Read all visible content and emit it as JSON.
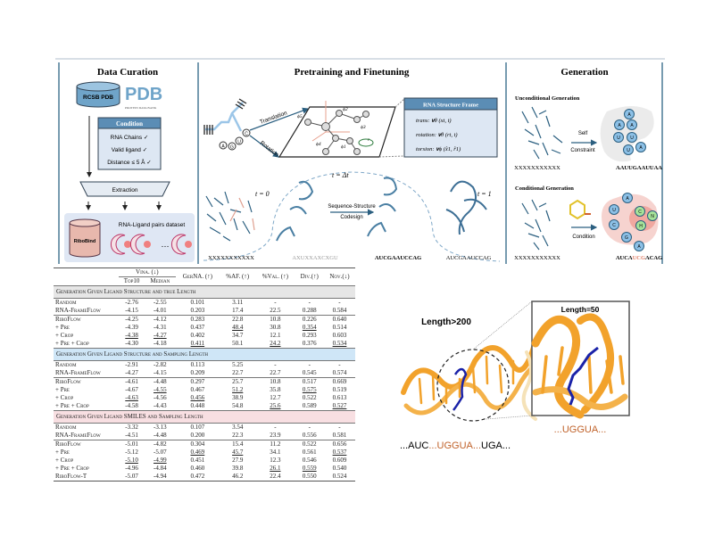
{
  "panels": {
    "curation": {
      "title": "Data Curation",
      "db_label": "RCSB PDB",
      "pdb_logo": "PDB",
      "pdb_logo_sub": "PROTEIN DATA BANK",
      "condition_title": "Condition",
      "conditions": [
        "RNA Chains ✓",
        "Valid ligand ✓",
        "Distance ≤ 5 Å ✓"
      ],
      "extraction": "Extraction",
      "dataset_label": "RNA-Ligand pairs dataset",
      "dataset_name": "RiboBind",
      "ellipsis": "…"
    },
    "pretraining": {
      "title": "Pretraining and Finetuning",
      "translation": "Translation",
      "rotation": "Rotation",
      "bases": [
        "A",
        "G",
        "U",
        "C"
      ],
      "angles": [
        "ϕ5",
        "ϕ2",
        "ϕ3",
        "ϕ1",
        "ϕ4",
        "r"
      ],
      "frame_title": "RNA Structure Frame",
      "frame_lines": [
        "trans: 𝐯θ (xt, t)",
        "rotation: 𝐯θ (rt, t)",
        "torsion: 𝐯ϕ (x̂1, r̂1)"
      ],
      "t0": "t = 0",
      "tdt": "t = Δt",
      "t1": "t = 1",
      "codesign": [
        "Sequence-Structure",
        "Codesign"
      ],
      "sequences": [
        "XXXXXXXXXXX",
        "AXUXXAXCXGU",
        "AUCGAAUCCAG",
        "AUCGAAUCCAG"
      ]
    },
    "generation": {
      "title": "Generation",
      "unconditional": "Unconditional Generation",
      "self_constraint": [
        "Self",
        "Constraint"
      ],
      "uncond_input": "XXXXXXXXXXX",
      "uncond_output": "AAUUGAAUUAA",
      "uncond_nodes": [
        "A",
        "A",
        "A",
        "U",
        "U",
        "U",
        "A"
      ],
      "conditional": "Conditional Generation",
      "condition": "Condition",
      "cond_input": "XXXXXXXXXXX",
      "cond_output_parts": [
        "AUCA",
        "UCG",
        "ACAG"
      ],
      "cond_nodes": [
        "A",
        "U",
        "C",
        "G",
        "A"
      ],
      "ligand_nodes": [
        "C",
        "N",
        "H"
      ]
    }
  },
  "table": {
    "headers": {
      "vina": "Vina. (↓)",
      "top10": "Top10",
      "median": "Median",
      "gerna": "GerNA. (↑)",
      "af": "%AF. (↑)",
      "val": "%Val. (↑)",
      "div": "Div.(↑)",
      "nov": "Nov.(↓)"
    },
    "sections": [
      {
        "title": "Generation Given Ligand Structure and true Length",
        "color": "#e6e6e6",
        "baselines": [
          {
            "label": "Random",
            "values": [
              "-2.76",
              "-2.55",
              "0.101",
              "3.11",
              "-",
              "-",
              "-"
            ],
            "bold": [],
            "underline": []
          },
          {
            "label": "RNA-FrameFlow",
            "values": [
              "-4.15",
              "-4.01",
              "0.203",
              "17.4",
              "22.5",
              "0.288",
              "0.584"
            ],
            "bold": [],
            "underline": []
          }
        ],
        "ours": [
          {
            "label": "RiboFlow",
            "values": [
              "-4.25",
              "-4.12",
              "0.283",
              "22.8",
              "10.8",
              "0.226",
              "0.640"
            ],
            "bold": [],
            "underline": []
          },
          {
            "label": "+ Pre",
            "values": [
              "-4.39",
              "-4.31",
              "0.437",
              "48.4",
              "30.8",
              "0.354",
              "0.514"
            ],
            "bold": [
              0,
              1,
              2,
              4,
              6
            ],
            "underline": [
              3,
              5
            ]
          },
          {
            "label": "+ Crop",
            "values": [
              "-4.38",
              "-4.27",
              "0.402",
              "34.7",
              "12.1",
              "0.293",
              "0.603"
            ],
            "bold": [],
            "underline": [
              0,
              1
            ]
          },
          {
            "label": "+ Pre + Crop",
            "values": [
              "-4.30",
              "-4.18",
              "0.411",
              "50.1",
              "24.2",
              "0.376",
              "0.534"
            ],
            "bold": [
              3,
              5
            ],
            "underline": [
              2,
              4,
              6
            ]
          }
        ]
      },
      {
        "title": "Generation Given Ligand Structure and Sampling Length",
        "color": "#cfe6f7",
        "baselines": [
          {
            "label": "Random",
            "values": [
              "-2.91",
              "-2.82",
              "0.113",
              "5.25",
              "-",
              "-",
              "-"
            ],
            "bold": [],
            "underline": []
          },
          {
            "label": "RNA-FrameFlow",
            "values": [
              "-4.27",
              "-4.15",
              "0.209",
              "22.7",
              "22.7",
              "0.545",
              "0.574"
            ],
            "bold": [],
            "underline": []
          }
        ],
        "ours": [
          {
            "label": "RiboFlow",
            "values": [
              "-4.61",
              "-4.48",
              "0.297",
              "25.7",
              "10.8",
              "0.517",
              "0.669"
            ],
            "bold": [],
            "underline": []
          },
          {
            "label": "+ Pre",
            "values": [
              "-4.67",
              "-4.55",
              "0.467",
              "51.2",
              "35.8",
              "0.575",
              "0.519"
            ],
            "bold": [
              0,
              2,
              4,
              6
            ],
            "underline": [
              1,
              3,
              5
            ]
          },
          {
            "label": "+ Crop",
            "values": [
              "-4.63",
              "-4.56",
              "0.456",
              "38.9",
              "12.7",
              "0.522",
              "0.613"
            ],
            "bold": [
              1
            ],
            "underline": [
              0,
              2
            ]
          },
          {
            "label": "+ Pre + Crop",
            "values": [
              "-4.58",
              "-4.43",
              "0.448",
              "54.8",
              "25.6",
              "0.589",
              "0.527"
            ],
            "bold": [
              3,
              5
            ],
            "underline": [
              4,
              6
            ]
          }
        ]
      },
      {
        "title": "Generation Given Ligand SMILES and Sampling Length",
        "color": "#f8dfe2",
        "baselines": [
          {
            "label": "Random",
            "values": [
              "-3.32",
              "-3.13",
              "0.107",
              "3.54",
              "-",
              "-",
              "-"
            ],
            "bold": [],
            "underline": []
          },
          {
            "label": "RNA-FrameFlow",
            "values": [
              "-4.51",
              "-4.48",
              "0.200",
              "22.3",
              "23.9",
              "0.556",
              "0.581"
            ],
            "bold": [],
            "underline": []
          }
        ],
        "ours": [
          {
            "label": "RiboFlow",
            "values": [
              "-5.01",
              "-4.82",
              "0.304",
              "15.4",
              "11.2",
              "0.522",
              "0.656"
            ],
            "bold": [],
            "underline": []
          },
          {
            "label": "+ Pre",
            "values": [
              "-5.12",
              "-5.07",
              "0.469",
              "45.7",
              "34.1",
              "0.561",
              "0.537"
            ],
            "bold": [
              0,
              1,
              4,
              5
            ],
            "underline": [
              2,
              3,
              6
            ]
          },
          {
            "label": "+ Crop",
            "values": [
              "-5.10",
              "-4.99",
              "0.451",
              "27.9",
              "12.3",
              "0.546",
              "0.609"
            ],
            "bold": [],
            "underline": [
              0,
              1
            ]
          },
          {
            "label": "+ Pre + Crop",
            "values": [
              "-4.96",
              "-4.84",
              "0.460",
              "39.8",
              "26.1",
              "0.559",
              "0.540"
            ],
            "bold": [],
            "underline": [
              4,
              5
            ]
          },
          {
            "label": "RiboFlow-T",
            "values": [
              "-5.07",
              "-4.94",
              "0.472",
              "46.2",
              "22.4",
              "0.550",
              "0.524"
            ],
            "bold": [
              2,
              3,
              6
            ],
            "underline": []
          }
        ]
      }
    ]
  },
  "structure_view": {
    "length_full": "Length>200",
    "length_crop": "Length=50",
    "seq_full_parts": [
      "...AUC",
      "...UGGUA...",
      "UGA..."
    ],
    "seq_crop": "...UGGUA...",
    "highlight_color": "#c0622a",
    "ribbon_color": "#f2a22b",
    "ligand_color": "#1a22a8"
  }
}
